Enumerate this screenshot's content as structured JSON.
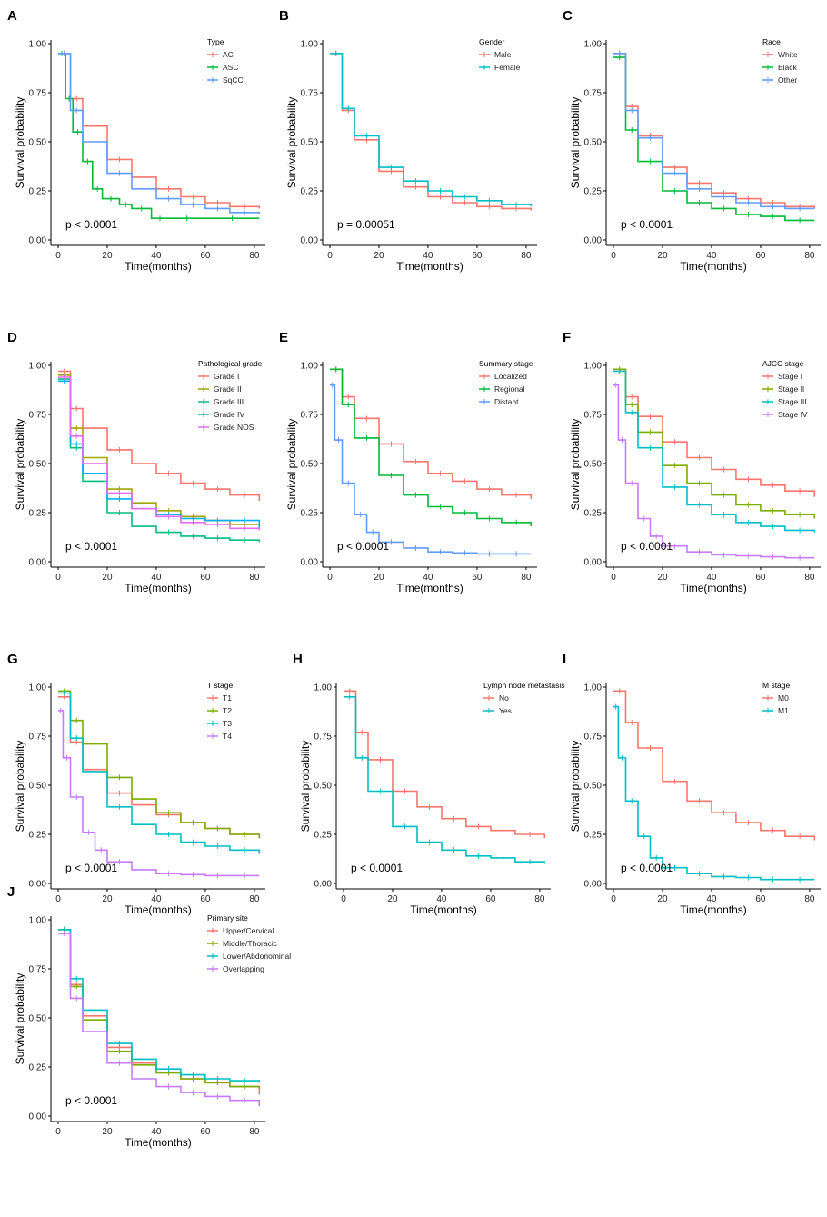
{
  "figure": {
    "x_axis_label": "Time(months)",
    "y_axis_label": "Survival probability",
    "x_ticks": [
      0,
      20,
      40,
      60,
      80
    ],
    "y_ticks": [
      "0.00",
      "0.25",
      "0.50",
      "0.75",
      "1.00"
    ]
  },
  "chart_data": [
    {
      "panel": "A",
      "type": "line",
      "title": "",
      "xlabel": "Time(months)",
      "ylabel": "Survival probability",
      "xlim": [
        0,
        83
      ],
      "ylim": [
        0,
        1
      ],
      "legend_title": "Type",
      "legend_position": "top-right",
      "p_value": "p < 0.0001",
      "series": [
        {
          "name": "AC",
          "color": "#F8766D",
          "x": [
            0,
            5,
            10,
            20,
            30,
            40,
            50,
            60,
            70,
            82
          ],
          "y": [
            0.95,
            0.72,
            0.58,
            0.41,
            0.32,
            0.26,
            0.22,
            0.19,
            0.17,
            0.16
          ]
        },
        {
          "name": "ASC",
          "color": "#00BA38",
          "x": [
            0,
            3,
            6,
            10,
            14,
            18,
            25,
            30,
            38,
            45,
            60,
            82
          ],
          "y": [
            0.95,
            0.72,
            0.55,
            0.4,
            0.26,
            0.21,
            0.18,
            0.16,
            0.11,
            0.11,
            0.11,
            0.11
          ]
        },
        {
          "name": "SqCC",
          "color": "#619CFF",
          "x": [
            0,
            5,
            10,
            20,
            30,
            40,
            50,
            60,
            70,
            82
          ],
          "y": [
            0.95,
            0.66,
            0.5,
            0.34,
            0.26,
            0.21,
            0.18,
            0.16,
            0.14,
            0.13
          ]
        }
      ]
    },
    {
      "panel": "B",
      "type": "line",
      "title": "",
      "xlabel": "Time(months)",
      "ylabel": "Survival probability",
      "xlim": [
        0,
        83
      ],
      "ylim": [
        0,
        1
      ],
      "legend_title": "Gender",
      "legend_position": "top-right",
      "p_value": "p = 0.00051",
      "series": [
        {
          "name": "Male",
          "color": "#F8766D",
          "x": [
            0,
            5,
            10,
            20,
            30,
            40,
            50,
            60,
            70,
            82
          ],
          "y": [
            0.95,
            0.66,
            0.51,
            0.35,
            0.27,
            0.22,
            0.19,
            0.17,
            0.16,
            0.15
          ]
        },
        {
          "name": "Female",
          "color": "#00BFC4",
          "x": [
            0,
            5,
            10,
            20,
            30,
            40,
            50,
            60,
            70,
            82
          ],
          "y": [
            0.95,
            0.67,
            0.53,
            0.37,
            0.3,
            0.25,
            0.22,
            0.2,
            0.18,
            0.17
          ]
        }
      ]
    },
    {
      "panel": "C",
      "type": "line",
      "title": "",
      "xlabel": "Time(months)",
      "ylabel": "Survival probability",
      "xlim": [
        0,
        83
      ],
      "ylim": [
        0,
        1
      ],
      "legend_title": "Race",
      "legend_position": "top-right",
      "p_value": "p < 0.0001",
      "series": [
        {
          "name": "White",
          "color": "#F8766D",
          "x": [
            0,
            5,
            10,
            20,
            30,
            40,
            50,
            60,
            70,
            82
          ],
          "y": [
            0.95,
            0.68,
            0.53,
            0.37,
            0.29,
            0.24,
            0.21,
            0.19,
            0.17,
            0.16
          ]
        },
        {
          "name": "Black",
          "color": "#00BA38",
          "x": [
            0,
            5,
            10,
            20,
            30,
            40,
            50,
            60,
            70,
            82
          ],
          "y": [
            0.93,
            0.56,
            0.4,
            0.25,
            0.19,
            0.16,
            0.13,
            0.12,
            0.1,
            0.1
          ]
        },
        {
          "name": "Other",
          "color": "#619CFF",
          "x": [
            0,
            5,
            10,
            20,
            30,
            40,
            50,
            60,
            70,
            82
          ],
          "y": [
            0.95,
            0.66,
            0.52,
            0.34,
            0.26,
            0.22,
            0.19,
            0.17,
            0.16,
            0.16
          ]
        }
      ]
    },
    {
      "panel": "D",
      "type": "line",
      "title": "",
      "xlabel": "Time(months)",
      "ylabel": "Survival probability",
      "xlim": [
        0,
        83
      ],
      "ylim": [
        0,
        1
      ],
      "legend_title": "Pathological grade",
      "legend_position": "top-right",
      "p_value": "p < 0.0001",
      "series": [
        {
          "name": "Grade I",
          "color": "#F8766D",
          "x": [
            0,
            5,
            10,
            20,
            30,
            40,
            50,
            60,
            70,
            82
          ],
          "y": [
            0.97,
            0.78,
            0.68,
            0.57,
            0.5,
            0.45,
            0.4,
            0.37,
            0.34,
            0.31
          ]
        },
        {
          "name": "Grade II",
          "color": "#A3A500",
          "x": [
            0,
            5,
            10,
            20,
            30,
            40,
            50,
            60,
            70,
            82
          ],
          "y": [
            0.95,
            0.68,
            0.53,
            0.37,
            0.3,
            0.26,
            0.23,
            0.21,
            0.19,
            0.18
          ]
        },
        {
          "name": "Grade III",
          "color": "#00BF7D",
          "x": [
            0,
            5,
            10,
            20,
            30,
            40,
            50,
            60,
            70,
            82
          ],
          "y": [
            0.93,
            0.58,
            0.41,
            0.25,
            0.18,
            0.15,
            0.13,
            0.12,
            0.11,
            0.1
          ]
        },
        {
          "name": "Grade IV",
          "color": "#00B0F6",
          "x": [
            0,
            5,
            10,
            20,
            30,
            40,
            50,
            60,
            70,
            82
          ],
          "y": [
            0.92,
            0.6,
            0.45,
            0.32,
            0.27,
            0.24,
            0.22,
            0.21,
            0.21,
            0.17
          ]
        },
        {
          "name": "Grade NOS",
          "color": "#E76BF3",
          "x": [
            0,
            5,
            10,
            20,
            30,
            40,
            50,
            60,
            70,
            82
          ],
          "y": [
            0.94,
            0.64,
            0.5,
            0.35,
            0.27,
            0.23,
            0.2,
            0.19,
            0.17,
            0.16
          ]
        }
      ]
    },
    {
      "panel": "E",
      "type": "line",
      "title": "",
      "xlabel": "Time(months)",
      "ylabel": "Survival probability",
      "xlim": [
        0,
        83
      ],
      "ylim": [
        0,
        1
      ],
      "legend_title": "Summary stage",
      "legend_position": "top-right",
      "p_value": "p < 0.0001",
      "series": [
        {
          "name": "Localized",
          "color": "#F8766D",
          "x": [
            0,
            5,
            10,
            20,
            30,
            40,
            50,
            60,
            70,
            82
          ],
          "y": [
            0.98,
            0.84,
            0.73,
            0.6,
            0.51,
            0.45,
            0.41,
            0.37,
            0.34,
            0.32
          ]
        },
        {
          "name": "Regional",
          "color": "#00BA38",
          "x": [
            0,
            5,
            10,
            20,
            30,
            40,
            50,
            60,
            70,
            82
          ],
          "y": [
            0.98,
            0.8,
            0.63,
            0.44,
            0.34,
            0.28,
            0.25,
            0.22,
            0.2,
            0.18
          ]
        },
        {
          "name": "Distant",
          "color": "#619CFF",
          "x": [
            0,
            2,
            5,
            10,
            15,
            20,
            30,
            40,
            50,
            60,
            70,
            82
          ],
          "y": [
            0.9,
            0.62,
            0.4,
            0.24,
            0.15,
            0.1,
            0.07,
            0.05,
            0.045,
            0.04,
            0.04,
            0.04
          ]
        }
      ]
    },
    {
      "panel": "F",
      "type": "line",
      "title": "",
      "xlabel": "Time(months)",
      "ylabel": "Survival probability",
      "xlim": [
        0,
        83
      ],
      "ylim": [
        0,
        1
      ],
      "legend_title": "AJCC stage",
      "legend_position": "top-right",
      "p_value": "p < 0.0001",
      "series": [
        {
          "name": "Stage I",
          "color": "#F8766D",
          "x": [
            0,
            5,
            10,
            20,
            30,
            40,
            50,
            60,
            70,
            82
          ],
          "y": [
            0.98,
            0.84,
            0.74,
            0.61,
            0.53,
            0.47,
            0.42,
            0.39,
            0.36,
            0.33
          ]
        },
        {
          "name": "Stage II",
          "color": "#7CAE00",
          "x": [
            0,
            5,
            10,
            20,
            30,
            40,
            50,
            60,
            70,
            82
          ],
          "y": [
            0.98,
            0.8,
            0.66,
            0.49,
            0.4,
            0.34,
            0.29,
            0.26,
            0.24,
            0.22
          ]
        },
        {
          "name": "Stage III",
          "color": "#00BFC4",
          "x": [
            0,
            5,
            10,
            20,
            30,
            40,
            50,
            60,
            70,
            82
          ],
          "y": [
            0.97,
            0.76,
            0.58,
            0.38,
            0.29,
            0.24,
            0.2,
            0.18,
            0.16,
            0.15
          ]
        },
        {
          "name": "Stage IV",
          "color": "#C77CFF",
          "x": [
            0,
            2,
            5,
            10,
            15,
            20,
            30,
            40,
            50,
            60,
            70,
            82
          ],
          "y": [
            0.9,
            0.62,
            0.4,
            0.22,
            0.13,
            0.08,
            0.05,
            0.035,
            0.03,
            0.025,
            0.02,
            0.02
          ]
        }
      ]
    },
    {
      "panel": "G",
      "type": "line",
      "title": "",
      "xlabel": "Time(months)",
      "ylabel": "Survival probability",
      "xlim": [
        0,
        83
      ],
      "ylim": [
        0,
        1
      ],
      "legend_title": "T stage",
      "legend_position": "top-right",
      "p_value": "p < 0.0001",
      "series": [
        {
          "name": "T1",
          "color": "#F8766D",
          "x": [
            0,
            5,
            10,
            20,
            30,
            40,
            50,
            60,
            70,
            82
          ],
          "y": [
            0.95,
            0.72,
            0.58,
            0.46,
            0.4,
            0.35,
            0.31,
            0.28,
            0.25,
            0.23
          ]
        },
        {
          "name": "T2",
          "color": "#7CAE00",
          "x": [
            0,
            5,
            10,
            20,
            30,
            40,
            50,
            60,
            70,
            82
          ],
          "y": [
            0.98,
            0.83,
            0.71,
            0.54,
            0.43,
            0.36,
            0.31,
            0.28,
            0.25,
            0.23
          ]
        },
        {
          "name": "T3",
          "color": "#00BFC4",
          "x": [
            0,
            5,
            10,
            20,
            30,
            40,
            50,
            60,
            70,
            82
          ],
          "y": [
            0.97,
            0.74,
            0.57,
            0.39,
            0.3,
            0.25,
            0.21,
            0.19,
            0.17,
            0.15
          ]
        },
        {
          "name": "T4",
          "color": "#C77CFF",
          "x": [
            0,
            2,
            5,
            10,
            15,
            20,
            30,
            40,
            50,
            60,
            70,
            82
          ],
          "y": [
            0.88,
            0.64,
            0.44,
            0.26,
            0.17,
            0.11,
            0.07,
            0.05,
            0.045,
            0.04,
            0.04,
            0.04
          ]
        }
      ]
    },
    {
      "panel": "H",
      "type": "line",
      "title": "",
      "xlabel": "Time(months)",
      "ylabel": "Survival probability",
      "xlim": [
        0,
        83
      ],
      "ylim": [
        0,
        1
      ],
      "legend_title": "Lymph node metastasis",
      "legend_position": "top-right",
      "p_value": "p < 0.0001",
      "series": [
        {
          "name": "No",
          "color": "#F8766D",
          "x": [
            0,
            5,
            10,
            20,
            30,
            40,
            50,
            60,
            70,
            82
          ],
          "y": [
            0.98,
            0.77,
            0.63,
            0.47,
            0.39,
            0.33,
            0.29,
            0.27,
            0.25,
            0.23
          ]
        },
        {
          "name": "Yes",
          "color": "#00BFC4",
          "x": [
            0,
            5,
            10,
            20,
            30,
            40,
            50,
            60,
            70,
            82
          ],
          "y": [
            0.95,
            0.64,
            0.47,
            0.29,
            0.21,
            0.17,
            0.14,
            0.13,
            0.11,
            0.1
          ]
        }
      ]
    },
    {
      "panel": "I",
      "type": "line",
      "title": "",
      "xlabel": "Time(months)",
      "ylabel": "Survival probability",
      "xlim": [
        0,
        83
      ],
      "ylim": [
        0,
        1
      ],
      "legend_title": "M stage",
      "legend_position": "top-right",
      "p_value": "p < 0.0001",
      "series": [
        {
          "name": "M0",
          "color": "#F8766D",
          "x": [
            0,
            5,
            10,
            20,
            30,
            40,
            50,
            60,
            70,
            82
          ],
          "y": [
            0.98,
            0.82,
            0.69,
            0.52,
            0.42,
            0.36,
            0.31,
            0.27,
            0.24,
            0.22
          ]
        },
        {
          "name": "M1",
          "color": "#00BFC4",
          "x": [
            0,
            2,
            5,
            10,
            15,
            20,
            30,
            40,
            50,
            60,
            70,
            82
          ],
          "y": [
            0.9,
            0.64,
            0.42,
            0.24,
            0.13,
            0.08,
            0.05,
            0.035,
            0.03,
            0.02,
            0.02,
            0.02
          ]
        }
      ]
    },
    {
      "panel": "J",
      "type": "line",
      "title": "",
      "xlabel": "Time(months)",
      "ylabel": "Survival probability",
      "xlim": [
        0,
        83
      ],
      "ylim": [
        0,
        1
      ],
      "legend_title": "Primary site",
      "legend_position": "top-right",
      "p_value": "p < 0.0001",
      "series": [
        {
          "name": "Upper/Cervical",
          "color": "#F8766D",
          "x": [
            0,
            5,
            10,
            20,
            30,
            40,
            50,
            60,
            70,
            82
          ],
          "y": [
            0.95,
            0.67,
            0.51,
            0.35,
            0.27,
            0.22,
            0.19,
            0.17,
            0.15,
            0.11
          ]
        },
        {
          "name": "Middle/Thoracic",
          "color": "#7CAE00",
          "x": [
            0,
            5,
            10,
            20,
            30,
            40,
            50,
            60,
            70,
            82
          ],
          "y": [
            0.95,
            0.66,
            0.49,
            0.33,
            0.26,
            0.22,
            0.19,
            0.17,
            0.15,
            0.14
          ]
        },
        {
          "name": "Lower/Abdonominal",
          "color": "#00BFC4",
          "x": [
            0,
            5,
            10,
            20,
            30,
            40,
            50,
            60,
            70,
            82
          ],
          "y": [
            0.95,
            0.7,
            0.54,
            0.37,
            0.29,
            0.24,
            0.21,
            0.19,
            0.18,
            0.17
          ]
        },
        {
          "name": "Overlapping",
          "color": "#C77CFF",
          "x": [
            0,
            5,
            10,
            20,
            30,
            40,
            50,
            60,
            70,
            82
          ],
          "y": [
            0.93,
            0.6,
            0.43,
            0.27,
            0.19,
            0.15,
            0.12,
            0.1,
            0.08,
            0.05
          ]
        }
      ]
    }
  ]
}
